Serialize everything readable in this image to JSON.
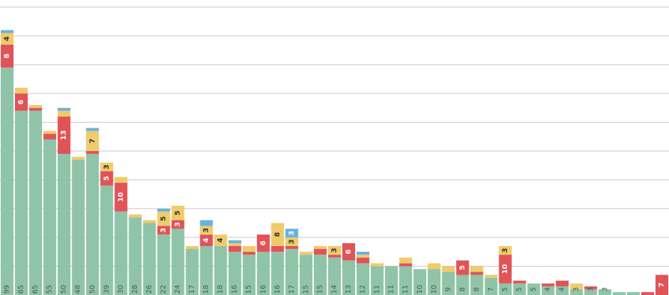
{
  "chart_data": {
    "type": "bar",
    "stacked": true,
    "orientation": "vertical",
    "title": "",
    "xlabel": "",
    "ylabel": "",
    "ylim": [
      0,
      100
    ],
    "grid": true,
    "legend": "none",
    "tick_label_rotation": -90,
    "categories": [
      "99",
      "65",
      "65",
      "55",
      "50",
      "48",
      "50",
      "39",
      "30",
      "28",
      "26",
      "22",
      "24",
      "17",
      "18",
      "18",
      "16",
      "15",
      "16",
      "16",
      "17",
      "15",
      "15",
      "14",
      "13",
      "12",
      "11",
      "11",
      "11",
      "10",
      "10",
      "9",
      "8",
      "8",
      "7",
      "5",
      "5",
      "5",
      "4",
      "4",
      "3",
      "3",
      "3",
      "",
      "",
      "",
      ""
    ],
    "series": [
      {
        "color": "#8fc4a8",
        "values": [
          79,
          64,
          64,
          54,
          49,
          47,
          49,
          38,
          29,
          27,
          25,
          21,
          23,
          16,
          17,
          17,
          15,
          14,
          15,
          15,
          16,
          14,
          14,
          13,
          12,
          11,
          10,
          10,
          10,
          9,
          9,
          8,
          7,
          7,
          6,
          4,
          4,
          4,
          3,
          3,
          2,
          2,
          2,
          1,
          1,
          0,
          0
        ]
      },
      {
        "color": "#e05458",
        "values": [
          8,
          6,
          1,
          2,
          13,
          0,
          1,
          5,
          10,
          0,
          0,
          3,
          3,
          0,
          4,
          0,
          2,
          1,
          6,
          2,
          1,
          0,
          2,
          1,
          6,
          2,
          0,
          0,
          1,
          0,
          0,
          0,
          5,
          1,
          0,
          10,
          1,
          0,
          1,
          2,
          0,
          1,
          0,
          0,
          0,
          1,
          7
        ]
      },
      {
        "color": "#f0cb6b",
        "values": [
          4,
          2,
          1,
          1,
          2,
          1,
          7,
          3,
          2,
          1,
          1,
          5,
          5,
          1,
          3,
          4,
          1,
          2,
          0,
          8,
          3,
          1,
          1,
          3,
          0,
          1,
          1,
          0,
          2,
          0,
          2,
          2,
          0,
          2,
          1,
          3,
          0,
          0,
          0,
          0,
          2,
          0,
          0,
          0,
          0,
          0,
          0
        ]
      },
      {
        "color": "#66b3de",
        "values": [
          1,
          0,
          0,
          0,
          1,
          0,
          1,
          0,
          0,
          0,
          0,
          1,
          0,
          0,
          2,
          0,
          1,
          0,
          0,
          0,
          3,
          0,
          0,
          0,
          0,
          1,
          0,
          0,
          0,
          0,
          0,
          0,
          0,
          0,
          0,
          0,
          0,
          0,
          0,
          0,
          0,
          0,
          0,
          0,
          0,
          0,
          0
        ]
      }
    ]
  }
}
